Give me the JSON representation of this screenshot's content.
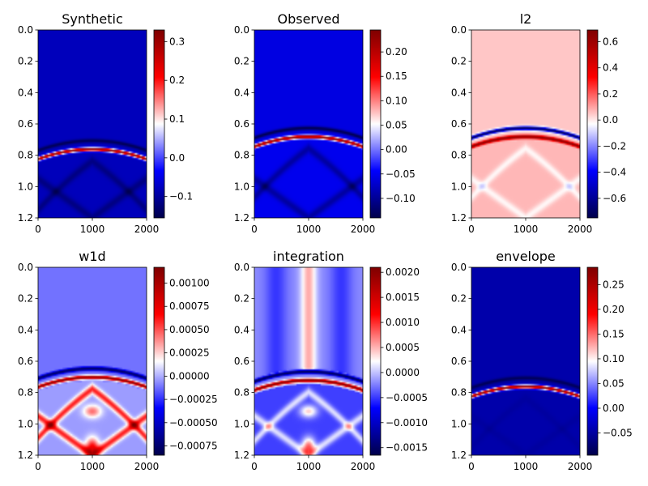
{
  "colormap": {
    "name": "seismic",
    "stops": [
      "#00004c",
      "#0000ff",
      "#ffffff",
      "#ff0000",
      "#7f0000"
    ]
  },
  "chart_data": [
    {
      "type": "heatmap",
      "title": "Synthetic",
      "xlim": [
        0,
        2000
      ],
      "ylim": [
        0,
        1.2
      ],
      "y_inverted": true,
      "x_ticks": [
        "0",
        "1000",
        "2000"
      ],
      "y_ticks": [
        "0.0",
        "0.2",
        "0.4",
        "0.6",
        "0.8",
        "1.0",
        "1.2"
      ],
      "colorbar": {
        "vmin": -0.155,
        "vmax": 0.33,
        "ticks": [
          "0.3",
          "0.2",
          "0.1",
          "0.0",
          "−0.1"
        ],
        "tick_values": [
          0.3,
          0.2,
          0.1,
          0.0,
          -0.1
        ]
      },
      "field": {
        "background": -0.08,
        "front_y": 0.8,
        "front_curv": 0.18,
        "pos": 0.32,
        "neg": -0.15,
        "below": -0.08,
        "x_pattern": 0.6
      }
    },
    {
      "type": "heatmap",
      "title": "Observed",
      "xlim": [
        0,
        2000
      ],
      "ylim": [
        0,
        1.2
      ],
      "y_inverted": true,
      "x_ticks": [
        "0",
        "1000",
        "2000"
      ],
      "y_ticks": [
        "0.0",
        "0.2",
        "0.4",
        "0.6",
        "0.8",
        "1.0",
        "1.2"
      ],
      "colorbar": {
        "vmin": -0.14,
        "vmax": 0.245,
        "ticks": [
          "0.20",
          "0.15",
          "0.10",
          "0.05",
          "0.00",
          "−0.05",
          "−0.10"
        ],
        "tick_values": [
          0.2,
          0.15,
          0.1,
          0.05,
          0.0,
          -0.05,
          -0.1
        ]
      },
      "field": {
        "background": -0.06,
        "front_y": 0.72,
        "front_curv": 0.18,
        "pos": 0.24,
        "neg": -0.14,
        "below": -0.05,
        "x_pattern": 0.7
      }
    },
    {
      "type": "heatmap",
      "title": "l2",
      "xlim": [
        0,
        2000
      ],
      "ylim": [
        0,
        1.2
      ],
      "y_inverted": true,
      "x_ticks": [
        "0",
        "1000",
        "2000"
      ],
      "y_ticks": [
        "0.0",
        "0.2",
        "0.4",
        "0.6",
        "0.8",
        "1.0",
        "1.2"
      ],
      "colorbar": {
        "vmin": -0.75,
        "vmax": 0.69,
        "ticks": [
          "0.6",
          "0.4",
          "0.2",
          "0.0",
          "−0.2",
          "−0.4",
          "−0.6"
        ],
        "tick_values": [
          0.6,
          0.4,
          0.2,
          0.0,
          -0.2,
          -0.4,
          -0.6
        ]
      },
      "field": {
        "background": 0.05,
        "front_y": 0.72,
        "front_curv": 0.18,
        "pos": 0.65,
        "neg": -0.72,
        "below": 0.08,
        "x_pattern": 0.3
      }
    },
    {
      "type": "heatmap",
      "title": "w1d",
      "xlim": [
        0,
        2000
      ],
      "ylim": [
        0,
        1.2
      ],
      "y_inverted": true,
      "x_ticks": [
        "0",
        "1000",
        "2000"
      ],
      "y_ticks": [
        "0.0",
        "0.2",
        "0.4",
        "0.6",
        "0.8",
        "1.0",
        "1.2"
      ],
      "colorbar": {
        "vmin": -0.00085,
        "vmax": 0.00117,
        "ticks": [
          "0.00100",
          "0.00075",
          "0.00050",
          "0.00025",
          "0.00000",
          "−0.00025",
          "−0.00050",
          "−0.00075"
        ],
        "tick_values": [
          0.001,
          0.00075,
          0.0005,
          0.00025,
          0.0,
          -0.00025,
          -0.0005,
          -0.00075
        ]
      },
      "field": {
        "background": -0.00012,
        "front_y": 0.74,
        "front_curv": 0.18,
        "pos": 0.00115,
        "neg": -0.0008,
        "below": 0.0,
        "x_pattern": 1.0
      }
    },
    {
      "type": "heatmap",
      "title": "integration",
      "xlim": [
        0,
        2000
      ],
      "ylim": [
        0,
        1.2
      ],
      "y_inverted": true,
      "x_ticks": [
        "0",
        "1000",
        "2000"
      ],
      "y_ticks": [
        "0.0",
        "0.2",
        "0.4",
        "0.6",
        "0.8",
        "1.0",
        "1.2"
      ],
      "colorbar": {
        "vmin": -0.00165,
        "vmax": 0.0021,
        "ticks": [
          "0.0020",
          "0.0015",
          "0.0010",
          "0.0005",
          "0.0000",
          "−0.0005",
          "−0.0010",
          "−0.0015"
        ],
        "tick_values": [
          0.002,
          0.0015,
          0.001,
          0.0005,
          0.0,
          -0.0005,
          -0.001,
          -0.0015
        ]
      },
      "field": {
        "background": -0.0002,
        "front_y": 0.76,
        "front_curv": 0.18,
        "pos": 0.0021,
        "neg": -0.0016,
        "below": -0.0006,
        "x_pattern": 0.5
      }
    },
    {
      "type": "heatmap",
      "title": "envelope",
      "xlim": [
        0,
        2000
      ],
      "ylim": [
        0,
        1.2
      ],
      "y_inverted": true,
      "x_ticks": [
        "0",
        "1000",
        "2000"
      ],
      "y_ticks": [
        "0.0",
        "0.2",
        "0.4",
        "0.6",
        "0.8",
        "1.0",
        "1.2"
      ],
      "colorbar": {
        "vmin": -0.095,
        "vmax": 0.285,
        "ticks": [
          "0.25",
          "0.20",
          "0.15",
          "0.10",
          "0.05",
          "0.00",
          "−0.05"
        ],
        "tick_values": [
          0.25,
          0.2,
          0.15,
          0.1,
          0.05,
          0.0,
          -0.05
        ]
      },
      "field": {
        "background": -0.045,
        "front_y": 0.8,
        "front_curv": 0.18,
        "pos": 0.28,
        "neg": -0.09,
        "below": -0.045,
        "x_pattern": 0.15
      }
    }
  ]
}
